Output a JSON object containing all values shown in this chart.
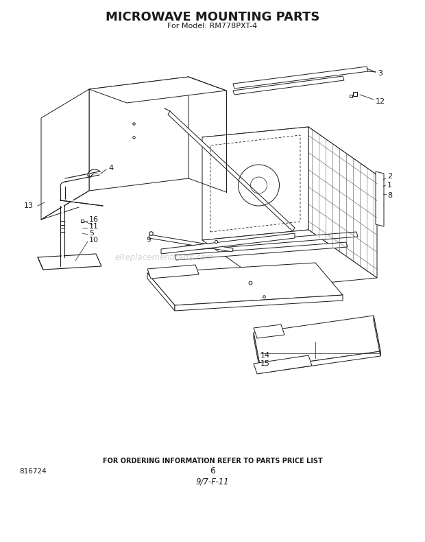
{
  "title": "MICROWAVE MOUNTING PARTS",
  "subtitle": "For Model: RM778PXT-4",
  "footer_text": "FOR ORDERING INFORMATION REFER TO PARTS PRICE LIST",
  "footer_num": "6",
  "footer_code": "9/7-F-11",
  "part_num_left": "816724",
  "watermark": "eReplacementParts.com",
  "bg_color": "#ffffff",
  "line_color": "#1a1a1a",
  "text_color": "#1a1a1a"
}
